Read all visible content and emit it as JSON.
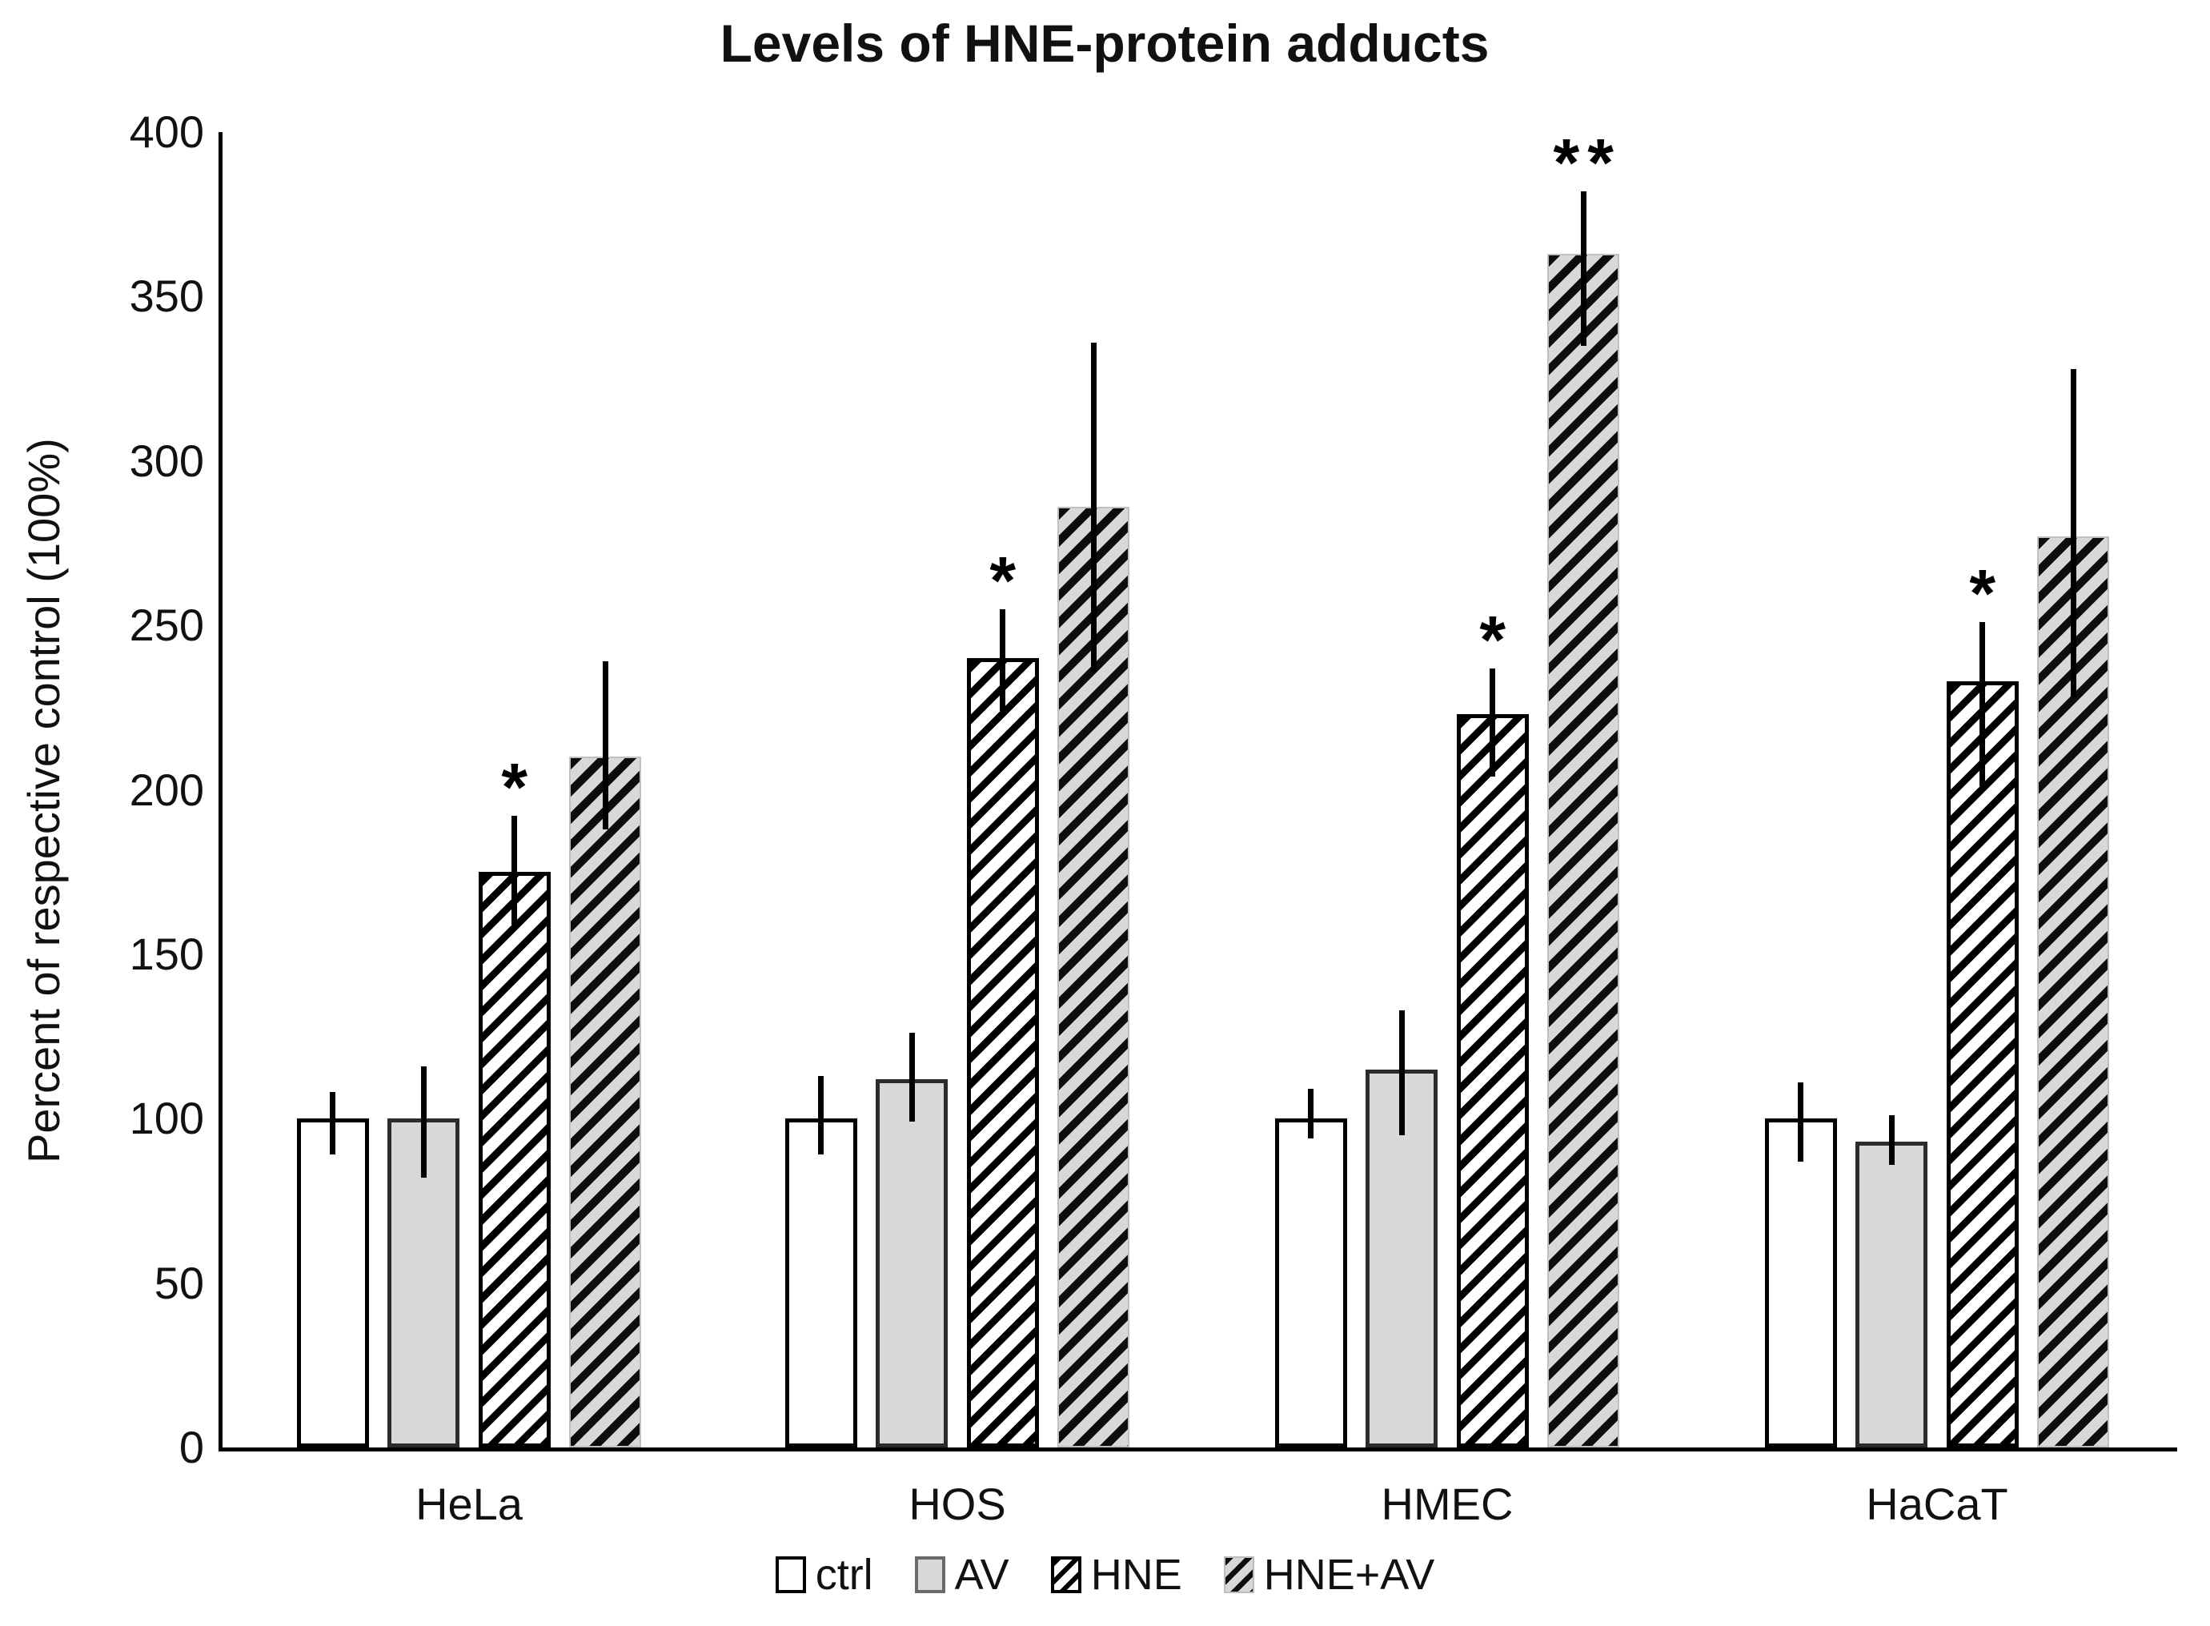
{
  "title": "Levels of HNE-protein adducts",
  "y_axis": {
    "label": "Percent of respective control (100%)",
    "min": 0,
    "max": 400,
    "tick_step": 50,
    "ticks": [
      0,
      50,
      100,
      150,
      200,
      250,
      300,
      350,
      400
    ]
  },
  "x_axis": {
    "categories": [
      "HeLa",
      "HOS",
      "HMEC",
      "HaCaT"
    ]
  },
  "legend": {
    "items": [
      {
        "label": "ctrl",
        "swatch": "white"
      },
      {
        "label": "AV",
        "swatch": "gray"
      },
      {
        "label": "HNE",
        "swatch": "hatch-white"
      },
      {
        "label": "HNE+AV",
        "swatch": "hatch-gray"
      }
    ]
  },
  "colors": {
    "ink": "#111111",
    "axis": "#000000",
    "gray_fill": "#d8d8d8",
    "white_fill": "#ffffff"
  },
  "chart_data": {
    "type": "bar",
    "title": "Levels of HNE-protein adducts",
    "xlabel": "",
    "ylabel": "Percent of respective control (100%)",
    "ylim": [
      0,
      400
    ],
    "grid": false,
    "legend_position": "bottom",
    "error_bars": true,
    "categories": [
      "HeLa",
      "HOS",
      "HMEC",
      "HaCaT"
    ],
    "series": [
      {
        "name": "ctrl",
        "appearance": "white",
        "values": [
          100,
          100,
          100,
          100
        ],
        "error_low": [
          89,
          89,
          94,
          87
        ],
        "error_high": [
          108,
          113,
          109,
          111
        ],
        "annotations": [
          "",
          "",
          "",
          ""
        ]
      },
      {
        "name": "AV",
        "appearance": "gray",
        "values": [
          100,
          112,
          115,
          93
        ],
        "error_low": [
          82,
          99,
          95,
          86
        ],
        "error_high": [
          116,
          126,
          133,
          101
        ],
        "annotations": [
          "",
          "",
          "",
          ""
        ]
      },
      {
        "name": "HNE",
        "appearance": "hatch-white",
        "values": [
          175,
          240,
          223,
          233
        ],
        "error_low": [
          159,
          224,
          204,
          201
        ],
        "error_high": [
          192,
          255,
          237,
          251
        ],
        "annotations": [
          "*",
          "*",
          "*",
          "*"
        ]
      },
      {
        "name": "HNE+AV",
        "appearance": "hatch-gray",
        "values": [
          210,
          286,
          363,
          277
        ],
        "error_low": [
          188,
          236,
          335,
          228
        ],
        "error_high": [
          239,
          336,
          382,
          328
        ],
        "annotations": [
          "",
          "",
          "**",
          ""
        ]
      }
    ]
  }
}
